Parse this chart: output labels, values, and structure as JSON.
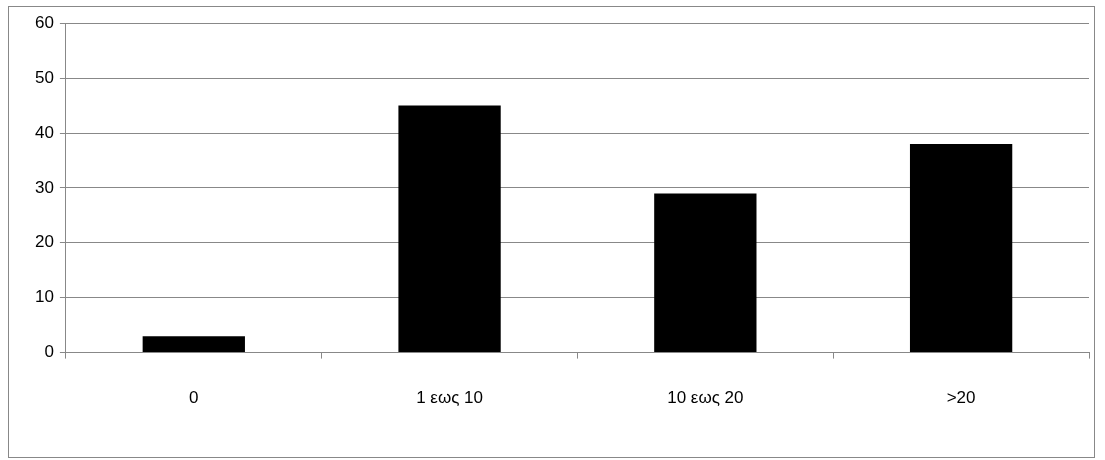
{
  "chart_data": {
    "type": "bar",
    "categories": [
      "0",
      "1 εως 10",
      "10 εως 20",
      ">20"
    ],
    "values": [
      3,
      45,
      29,
      38
    ],
    "color": "#000000",
    "ylim": [
      0,
      60
    ],
    "yticks": [
      0,
      10,
      20,
      30,
      40,
      50,
      60
    ],
    "grid": "y",
    "legend": false
  }
}
